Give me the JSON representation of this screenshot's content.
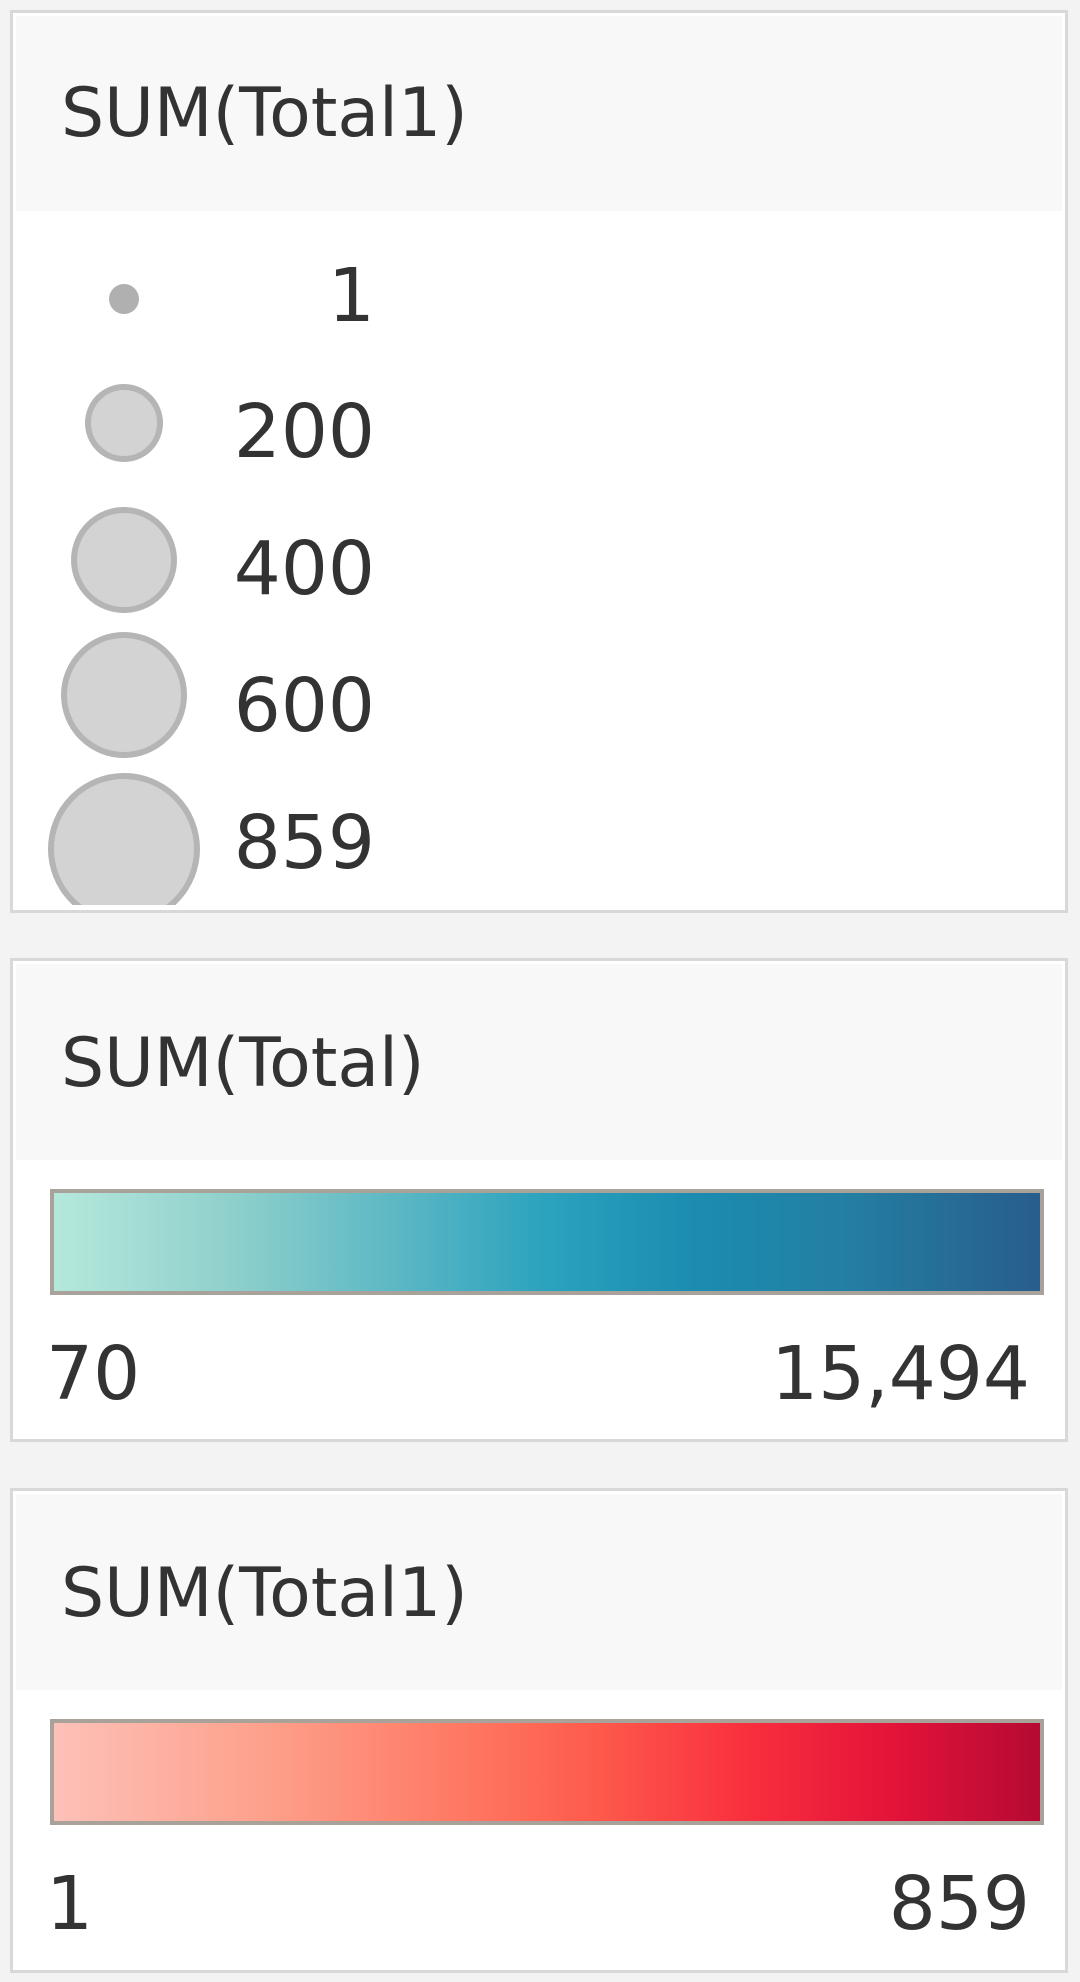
{
  "size_legend": {
    "title": "SUM(Total1)",
    "items": [
      {
        "label": "1"
      },
      {
        "label": "200"
      },
      {
        "label": "400"
      },
      {
        "label": "600"
      },
      {
        "label": "859"
      }
    ]
  },
  "color_legend_total": {
    "title": "SUM(Total)",
    "min_label": "70",
    "max_label": "15,494",
    "start_color": "#b5e8db",
    "end_color": "#285d8c"
  },
  "color_legend_total1": {
    "title": "SUM(Total1)",
    "min_label": "1",
    "max_label": "859",
    "start_color": "#fdc1b8",
    "end_color": "#b50a33"
  }
}
